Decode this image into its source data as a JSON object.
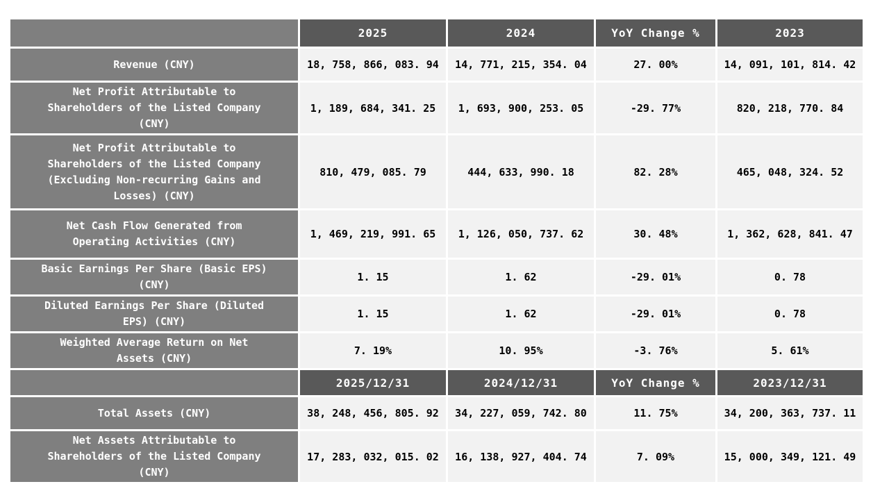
{
  "theme": {
    "label_bg": "#7f7f7f",
    "year_header_bg": "#595959",
    "data_bg": "#f2f2f2",
    "border_color": "#ffffff",
    "header_text_color": "#ffffff",
    "label_text_color": "#ffffff",
    "data_text_color": "#000000"
  },
  "table": {
    "sections": [
      {
        "header": [
          "",
          "2025",
          "2024",
          "YoY Change %",
          "2023"
        ],
        "rows": [
          {
            "label": [
              "Revenue (CNY)"
            ],
            "values": [
              "18, 758, 866, 083. 94",
              "14, 771, 215, 354. 04",
              "27. 00%",
              "14, 091, 101, 814. 42"
            ]
          },
          {
            "label": [
              "Net Profit Attributable to",
              "Shareholders of the Listed Company",
              "(CNY)"
            ],
            "values": [
              "1, 189, 684, 341. 25",
              "1, 693, 900, 253. 05",
              "-29. 77%",
              "820, 218, 770. 84"
            ]
          },
          {
            "label": [
              "Net Profit Attributable to",
              "Shareholders of the Listed Company",
              "(Excluding Non-recurring Gains and",
              "Losses) (CNY)"
            ],
            "values": [
              "810, 479, 085. 79",
              "444, 633, 990. 18",
              "82. 28%",
              "465, 048, 324. 52"
            ]
          },
          {
            "label": [
              "Net Cash Flow Generated from",
              "Operating Activities (CNY)"
            ],
            "values": [
              "1, 469, 219, 991. 65",
              "1, 126, 050, 737. 62",
              "30. 48%",
              "1, 362, 628, 841. 47"
            ]
          },
          {
            "label": [
              "Basic Earnings Per Share (Basic EPS)",
              "(CNY)"
            ],
            "values": [
              "1. 15",
              "1. 62",
              "-29. 01%",
              "0. 78"
            ]
          },
          {
            "label": [
              "Diluted Earnings Per Share (Diluted",
              "EPS) (CNY)"
            ],
            "values": [
              "1. 15",
              "1. 62",
              "-29. 01%",
              "0. 78"
            ]
          },
          {
            "label": [
              "Weighted Average Return on Net",
              "Assets (CNY)"
            ],
            "values": [
              "7. 19%",
              "10. 95%",
              "-3. 76%",
              "5. 61%"
            ]
          }
        ]
      },
      {
        "header": [
          "",
          "2025/12/31",
          "2024/12/31",
          "YoY Change %",
          "2023/12/31"
        ],
        "rows": [
          {
            "label": [
              "Total Assets (CNY)"
            ],
            "values": [
              "38, 248, 456, 805. 92",
              "34, 227, 059, 742. 80",
              "11. 75%",
              "34, 200, 363, 737. 11"
            ]
          },
          {
            "label": [
              "Net Assets Attributable to",
              "Shareholders of the Listed Company",
              "(CNY)"
            ],
            "values": [
              "17, 283, 032, 015. 02",
              "16, 138, 927, 404. 74",
              "7. 09%",
              "15, 000, 349, 121. 49"
            ]
          }
        ]
      }
    ]
  },
  "chart_data": {
    "type": "table",
    "groups": [
      {
        "columns": [
          "2025",
          "2024",
          "YoY Change %",
          "2023"
        ],
        "rows": [
          {
            "metric": "Revenue (CNY)",
            "values": [
              18758866083.94,
              14771215354.04,
              27.0,
              14091101814.42
            ]
          },
          {
            "metric": "Net Profit Attributable to Shareholders of the Listed Company (CNY)",
            "values": [
              1189684341.25,
              1693900253.05,
              -29.77,
              820218770.84
            ]
          },
          {
            "metric": "Net Profit Attributable to Shareholders of the Listed Company (Excluding Non-recurring Gains and Losses) (CNY)",
            "values": [
              810479085.79,
              444633990.18,
              82.28,
              465048324.52
            ]
          },
          {
            "metric": "Net Cash Flow Generated from Operating Activities (CNY)",
            "values": [
              1469219991.65,
              1126050737.62,
              30.48,
              1362628841.47
            ]
          },
          {
            "metric": "Basic Earnings Per Share (Basic EPS) (CNY)",
            "values": [
              1.15,
              1.62,
              -29.01,
              0.78
            ]
          },
          {
            "metric": "Diluted Earnings Per Share (Diluted EPS) (CNY)",
            "values": [
              1.15,
              1.62,
              -29.01,
              0.78
            ]
          },
          {
            "metric": "Weighted Average Return on Net Assets (CNY)",
            "values": [
              7.19,
              10.95,
              -3.76,
              5.61
            ]
          }
        ]
      },
      {
        "columns": [
          "2025/12/31",
          "2024/12/31",
          "YoY Change %",
          "2023/12/31"
        ],
        "rows": [
          {
            "metric": "Total Assets (CNY)",
            "values": [
              38248456805.92,
              34227059742.8,
              11.75,
              34200363737.11
            ]
          },
          {
            "metric": "Net Assets Attributable to Shareholders of the Listed Company (CNY)",
            "values": [
              17283032015.02,
              16138927404.74,
              7.09,
              15000349121.49
            ]
          }
        ]
      }
    ]
  }
}
